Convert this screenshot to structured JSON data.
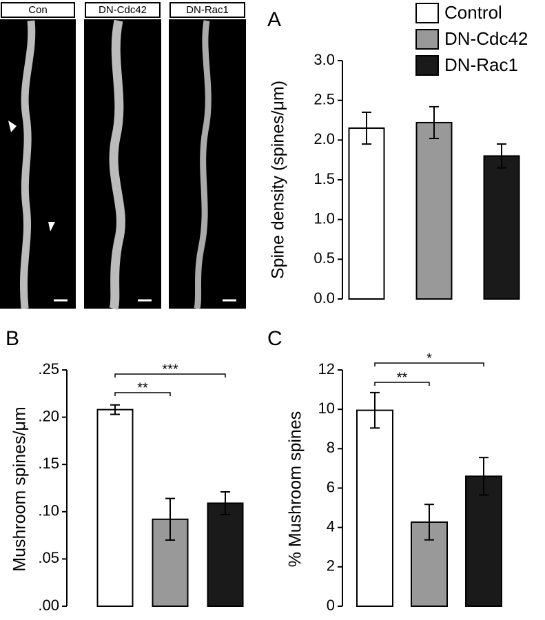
{
  "images": {
    "labels": [
      "Con",
      "DN-Cdc42",
      "DN-Rac1"
    ]
  },
  "legend": [
    {
      "name": "Control",
      "color": "#ffffff"
    },
    {
      "name": "DN-Cdc42",
      "color": "#999999"
    },
    {
      "name": "DN-Rac1",
      "color": "#1a1a1a"
    }
  ],
  "chart_data": [
    {
      "type": "bar",
      "panel": "A",
      "ylabel": "Spine density (spines/μm)",
      "values": [
        2.15,
        2.22,
        1.8
      ],
      "errors": [
        0.2,
        0.2,
        0.15
      ],
      "ylim": [
        0,
        3
      ],
      "yticks": [
        {
          "value": 0,
          "label": "0.0"
        },
        0.5,
        {
          "value": 1,
          "label": "1.0"
        },
        1.5,
        {
          "value": 2,
          "label": "2.0"
        },
        2.5,
        {
          "value": 3,
          "label": "3.0"
        }
      ]
    },
    {
      "type": "bar",
      "panel": "B",
      "ylabel": "Mushroom spines/μm",
      "values": [
        0.208,
        0.092,
        0.109
      ],
      "errors": [
        0.005,
        0.022,
        0.012
      ],
      "ylim": [
        0,
        0.25
      ],
      "yticks": [
        {
          "value": 0,
          "label": ".00"
        },
        {
          "value": 0.05,
          "label": ".05"
        },
        {
          "value": 0.1,
          "label": ".10"
        },
        {
          "value": 0.15,
          "label": ".15"
        },
        {
          "value": 0.2,
          "label": ".20"
        },
        {
          "value": 0.25,
          "label": ".25"
        }
      ],
      "annotations": [
        {
          "from": 0,
          "to": 1,
          "label": "**"
        },
        {
          "from": 0,
          "to": 2,
          "label": "***"
        }
      ]
    },
    {
      "type": "bar",
      "panel": "C",
      "ylabel": "% Mushroom spines",
      "values": [
        9.95,
        4.27,
        6.6
      ],
      "errors": [
        0.9,
        0.9,
        0.95
      ],
      "ylim": [
        0,
        12
      ],
      "yticks": [
        0,
        2,
        4,
        6,
        8,
        10,
        12
      ],
      "annotations": [
        {
          "from": 0,
          "to": 1,
          "label": "**"
        },
        {
          "from": 0,
          "to": 2,
          "label": "*"
        }
      ]
    }
  ]
}
